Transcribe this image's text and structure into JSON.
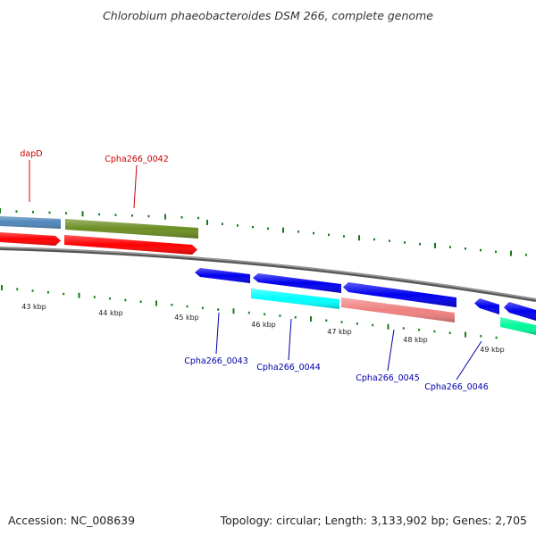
{
  "header": {
    "title": "Chlorobium phaeobacteroides DSM 266, complete genome"
  },
  "footer": {
    "accession": "Accession: NC_008639",
    "summary": "Topology: circular; Length: 3,133,902 bp; Genes: 2,705"
  },
  "colors": {
    "label_red": "#cc0000",
    "label_blue": "#0000aa",
    "tick_green": "#1a7a1a",
    "backbone": "#808080"
  },
  "scale": {
    "ticks": [
      {
        "label": "43 kbp"
      },
      {
        "label": "44 kbp"
      },
      {
        "label": "45 kbp"
      },
      {
        "label": "46 kbp"
      },
      {
        "label": "47 kbp"
      },
      {
        "label": "48 kbp"
      },
      {
        "label": "49 kbp"
      }
    ]
  },
  "features": [
    {
      "label": "",
      "color": "#4f86b8"
    },
    {
      "label": "dapD",
      "color": "#ff0000"
    },
    {
      "label": "Cpha266_0042",
      "color": "#6b8e23"
    },
    {
      "label": "",
      "color": "#ff0000"
    },
    {
      "label": "Cpha266_0043",
      "color": "#0000ee"
    },
    {
      "label": "",
      "color": "#0000ee"
    },
    {
      "label": "Cpha266_0044",
      "color": "#00ffff"
    },
    {
      "label": "",
      "color": "#0000ee"
    },
    {
      "label": "Cpha266_0045",
      "color": "#f08080"
    },
    {
      "label": "Cpha266_0046",
      "color": "#0000ee"
    },
    {
      "label": "",
      "color": "#0000ee"
    },
    {
      "label": "",
      "color": "#00fa9a"
    }
  ]
}
